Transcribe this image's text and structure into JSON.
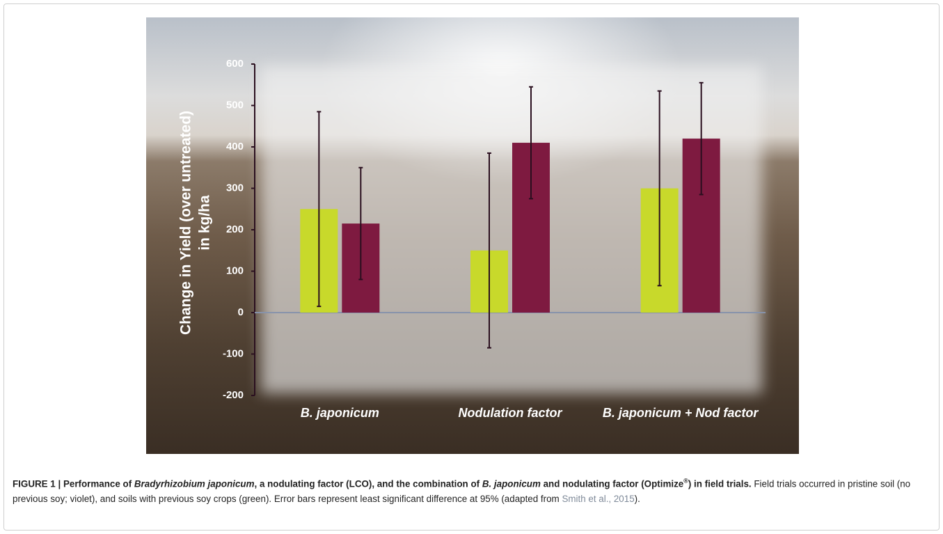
{
  "chart_data": {
    "type": "bar",
    "y_label": [
      "Change in Yield (over untreated)",
      "in kg/ha"
    ],
    "categories": [
      "B. japonicum",
      "Nodulation factor",
      "B. japonicum + Nod factor"
    ],
    "series": [
      {
        "color": "#c8d92b",
        "values": [
          250,
          150,
          300
        ],
        "errors": [
          235,
          235,
          235
        ]
      },
      {
        "color": "#7e1a40",
        "values": [
          215,
          410,
          420
        ],
        "errors": [
          135,
          135,
          135
        ]
      }
    ],
    "ylim": [
      -200,
      600
    ],
    "yticks": [
      -200,
      -100,
      0,
      100,
      200,
      300,
      400,
      500,
      600
    ]
  },
  "caption": {
    "segments": [
      "FIGURE 1 | Performance of ",
      "Bradyrhizobium japonicum",
      ", a nodulating factor (LCO), and the combination of ",
      "B. japonicum",
      " and nodulating factor (Optimize",
      "®",
      ") in field trials.",
      " Field trials occurred in pristine soil (no previous soy; violet), and soils with previous soy crops (green). Error bars represent least significant difference at 95% (adapted from ",
      "Smith et al., 2015",
      ")."
    ]
  }
}
